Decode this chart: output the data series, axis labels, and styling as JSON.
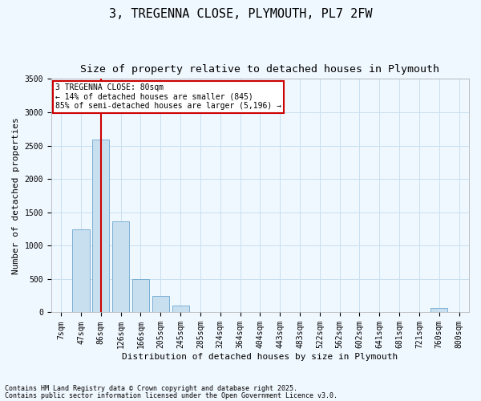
{
  "title1": "3, TREGENNA CLOSE, PLYMOUTH, PL7 2FW",
  "title2": "Size of property relative to detached houses in Plymouth",
  "xlabel": "Distribution of detached houses by size in Plymouth",
  "ylabel": "Number of detached properties",
  "bar_labels": [
    "7sqm",
    "47sqm",
    "86sqm",
    "126sqm",
    "166sqm",
    "205sqm",
    "245sqm",
    "285sqm",
    "324sqm",
    "364sqm",
    "404sqm",
    "443sqm",
    "483sqm",
    "522sqm",
    "562sqm",
    "602sqm",
    "641sqm",
    "681sqm",
    "721sqm",
    "760sqm",
    "800sqm"
  ],
  "bar_values": [
    5,
    1240,
    2590,
    1360,
    500,
    250,
    100,
    0,
    0,
    0,
    0,
    0,
    0,
    0,
    0,
    0,
    0,
    0,
    0,
    60,
    0
  ],
  "bar_color": "#c8dff0",
  "bar_edge_color": "#7ab0d4",
  "vline_x": 2,
  "vline_color": "#cc0000",
  "ylim": [
    0,
    3500
  ],
  "yticks": [
    0,
    500,
    1000,
    1500,
    2000,
    2500,
    3000,
    3500
  ],
  "annotation_text": "3 TREGENNA CLOSE: 80sqm\n← 14% of detached houses are smaller (845)\n85% of semi-detached houses are larger (5,196) →",
  "annotation_box_color": "#ffffff",
  "annotation_box_edge": "#cc0000",
  "footnote1": "Contains HM Land Registry data © Crown copyright and database right 2025.",
  "footnote2": "Contains public sector information licensed under the Open Government Licence v3.0.",
  "bg_color": "#f0f8ff",
  "grid_color": "#c8dff0",
  "title1_fontsize": 11,
  "title2_fontsize": 9.5,
  "tick_fontsize": 7,
  "label_fontsize": 8,
  "ylabel_fontsize": 8,
  "annot_fontsize": 7,
  "footnote_fontsize": 6
}
